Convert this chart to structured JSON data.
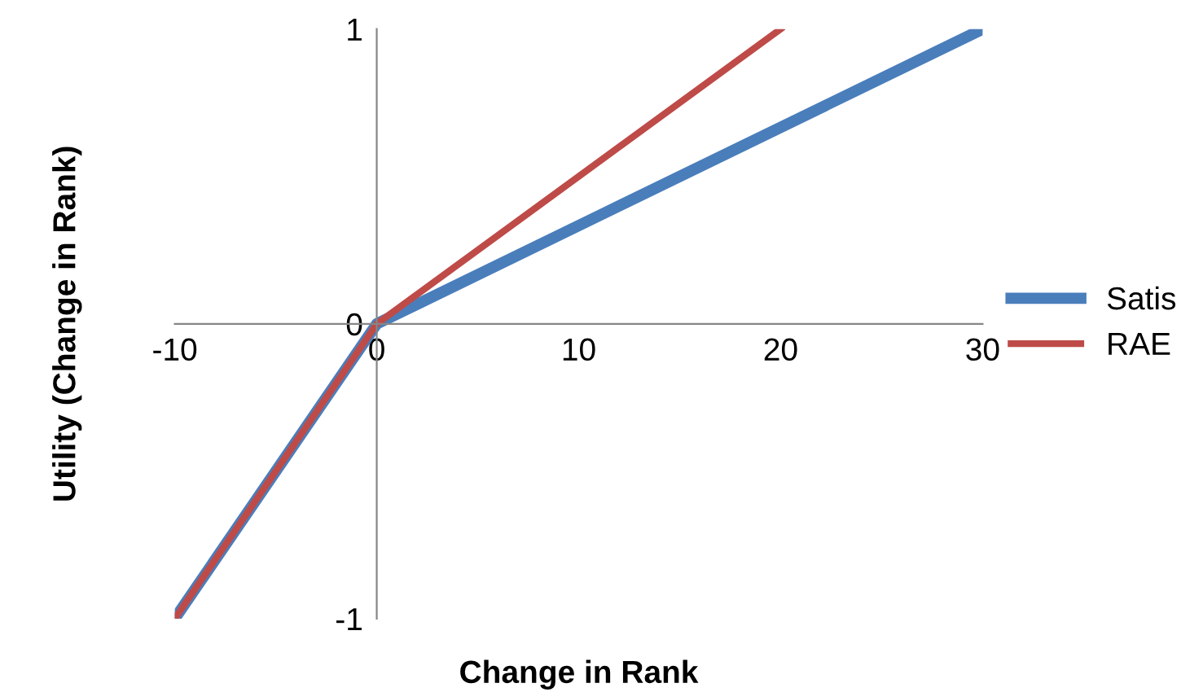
{
  "chart_data": {
    "type": "line",
    "xlabel": "Change in Rank",
    "ylabel": "Utility (Change in Rank)",
    "series": [
      {
        "name": "Satis",
        "color": "#4a7ebb",
        "x": [
          -10,
          0,
          30
        ],
        "values": [
          -1,
          0,
          1
        ]
      },
      {
        "name": "RAE",
        "color": "#be4b48",
        "x": [
          -10,
          0,
          20
        ],
        "values": [
          -1,
          0,
          1
        ]
      }
    ],
    "xlim": [
      -10,
      30
    ],
    "ylim": [
      -1,
      1
    ],
    "xticks": [
      -10,
      0,
      10,
      20,
      30
    ],
    "yticks": [
      -1,
      0,
      1
    ],
    "grid": false,
    "legend": "right",
    "marker": "none",
    "line_style": "solid"
  }
}
